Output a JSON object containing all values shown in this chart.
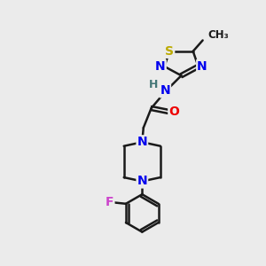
{
  "background_color": "#ebebeb",
  "bond_color": "#1a1a1a",
  "bond_width": 1.8,
  "atom_colors": {
    "N": "#0000ee",
    "O": "#ee0000",
    "S": "#bbaa00",
    "F": "#cc44cc",
    "H": "#447777",
    "C": "#1a1a1a"
  },
  "font_size": 10,
  "font_size_small": 8.5
}
